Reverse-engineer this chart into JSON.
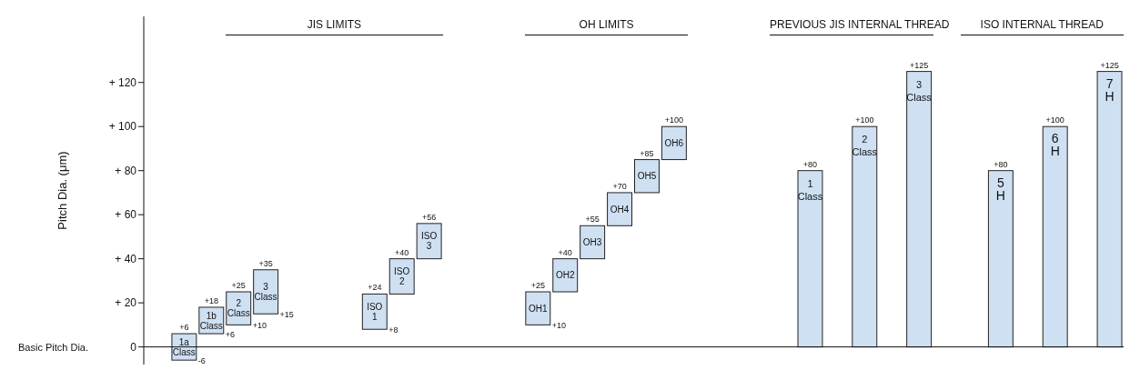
{
  "chart_data": {
    "type": "bar",
    "ylabel": "Pitch Dia. (μm)",
    "categories": [
      null,
      "1a Class",
      "1b Class",
      "2 Class",
      "3 Class",
      null,
      null,
      null,
      "ISO 1",
      "ISO 2",
      "ISO 3",
      null,
      null,
      null,
      "OH1",
      "OH2",
      "OH3",
      "OH4",
      "OH5",
      "OH6",
      null,
      null,
      null,
      null,
      "1 Class",
      null,
      "2 Class",
      null,
      "3 Class",
      null,
      null,
      "5 H",
      null,
      "6 H",
      null,
      "7 H"
    ],
    "base": [
      null,
      -6,
      6,
      10,
      15,
      null,
      null,
      null,
      8,
      24,
      40,
      null,
      null,
      null,
      10,
      25,
      40,
      55,
      70,
      85,
      null,
      null,
      null,
      null,
      0,
      null,
      0,
      null,
      0,
      null,
      null,
      0,
      null,
      0,
      null,
      0
    ],
    "values": [
      null,
      12,
      12,
      15,
      20,
      null,
      null,
      null,
      16,
      16,
      16,
      null,
      null,
      null,
      15,
      15,
      15,
      15,
      15,
      15,
      null,
      null,
      null,
      null,
      80,
      null,
      100,
      null,
      125,
      null,
      null,
      80,
      null,
      100,
      null,
      125
    ],
    "value_labels": [
      null,
      "+6",
      "+18",
      "+25",
      "+35",
      null,
      null,
      null,
      "+24",
      "+40",
      "+56",
      null,
      null,
      null,
      "+25",
      "+40",
      "+55",
      "+70",
      "+85",
      "+100",
      null,
      null,
      null,
      null,
      "+80",
      null,
      "+100",
      null,
      "+125",
      null,
      null,
      "+80",
      null,
      "+100",
      null,
      "+125"
    ],
    "color": "#cfe0f3",
    "ylim": [
      -8,
      150
    ],
    "yticks": [
      0,
      {
        "value": 20,
        "label": "+ 20"
      },
      {
        "value": 40,
        "label": "+ 40"
      },
      {
        "value": 60,
        "label": "+ 60"
      },
      {
        "value": 80,
        "label": "+ 80"
      },
      {
        "value": 100,
        "label": "+ 100"
      },
      {
        "value": 120,
        "label": "+ 120"
      }
    ],
    "ref_lines": [
      {
        "axis": "y",
        "value": 0,
        "label": "Basic Pitch Dia."
      }
    ],
    "tick_labels": "y",
    "annotations": [
      "JIS LIMITS",
      "OH LIMITS",
      "PREVIOUS JIS INTERNAL THREAD",
      "ISO INTERNAL THREAD",
      {
        "text": "-6",
        "x": "1a Class",
        "y": -6
      },
      {
        "text": "+6",
        "x": "1b Class",
        "y": 6
      },
      {
        "text": "+10",
        "x": "2 Class",
        "y": 10
      },
      {
        "text": "+15",
        "x": "3 Class",
        "y": 15
      },
      {
        "text": "+8",
        "x": "ISO 1",
        "y": 8
      },
      {
        "text": "+10",
        "x": "OH1",
        "y": 10
      }
    ]
  }
}
